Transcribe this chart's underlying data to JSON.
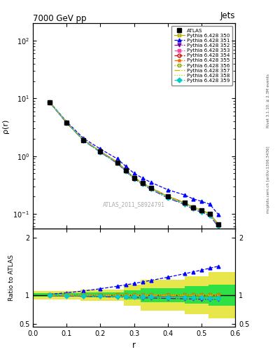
{
  "title": "7000 GeV pp",
  "top_right_label": "Jets",
  "ylabel_main": "ρ(r)",
  "ylabel_ratio": "Ratio to ATLAS",
  "xlabel": "r",
  "watermark": "ATLAS_2011_S8924791",
  "right_label1": "Rivet 3.1.10; ≥ 2.3M events",
  "right_label2": "mcplots.cern.ch [arXiv:1306.3436]",
  "r_values": [
    0.05,
    0.1,
    0.15,
    0.2,
    0.25,
    0.275,
    0.3,
    0.325,
    0.35,
    0.4,
    0.45,
    0.475,
    0.5,
    0.525,
    0.55
  ],
  "atlas_data": [
    8.5,
    3.8,
    1.9,
    1.2,
    0.78,
    0.57,
    0.42,
    0.34,
    0.28,
    0.2,
    0.155,
    0.13,
    0.115,
    0.1,
    0.065
  ],
  "atlas_err_lo": [
    0.3,
    0.15,
    0.08,
    0.05,
    0.03,
    0.025,
    0.018,
    0.015,
    0.012,
    0.009,
    0.007,
    0.006,
    0.005,
    0.004,
    0.003
  ],
  "atlas_err_hi": [
    0.3,
    0.15,
    0.08,
    0.05,
    0.03,
    0.025,
    0.018,
    0.015,
    0.012,
    0.009,
    0.007,
    0.006,
    0.005,
    0.004,
    0.003
  ],
  "series": [
    {
      "label": "Pythia 6.428 350",
      "color": "#aaaa00",
      "linestyle": "-",
      "marker": "s",
      "markerfill": "none",
      "scale": 1.0
    },
    {
      "label": "Pythia 6.428 351",
      "color": "#0000ff",
      "linestyle": "--",
      "marker": "^",
      "markerfill": "full",
      "scale": 1.22
    },
    {
      "label": "Pythia 6.428 352",
      "color": "#7700aa",
      "linestyle": "-.",
      "marker": "v",
      "markerfill": "full",
      "scale": 0.92
    },
    {
      "label": "Pythia 6.428 353",
      "color": "#ff44aa",
      "linestyle": "-.",
      "marker": "s",
      "markerfill": "full",
      "scale": 1.01
    },
    {
      "label": "Pythia 6.428 354",
      "color": "#dd0000",
      "linestyle": "--",
      "marker": "o",
      "markerfill": "none",
      "scale": 1.0
    },
    {
      "label": "Pythia 6.428 355",
      "color": "#ff6600",
      "linestyle": "-.",
      "marker": "*",
      "markerfill": "full",
      "scale": 1.01
    },
    {
      "label": "Pythia 6.428 356",
      "color": "#88aa00",
      "linestyle": ":",
      "marker": "s",
      "markerfill": "none",
      "scale": 1.01
    },
    {
      "label": "Pythia 6.428 357",
      "color": "#ddaa00",
      "linestyle": "-.",
      "marker": "None",
      "markerfill": "none",
      "scale": 1.0
    },
    {
      "label": "Pythia 6.428 358",
      "color": "#aadd00",
      "linestyle": ":",
      "marker": "None",
      "markerfill": "none",
      "scale": 1.01
    },
    {
      "label": "Pythia 6.428 359",
      "color": "#00cccc",
      "linestyle": "--",
      "marker": "D",
      "markerfill": "full",
      "scale": 0.95
    }
  ],
  "ylim_main_log": [
    0.055,
    200
  ],
  "ylim_ratio": [
    0.45,
    2.15
  ],
  "xlim": [
    0.0,
    0.6
  ],
  "background_color": "#ffffff"
}
